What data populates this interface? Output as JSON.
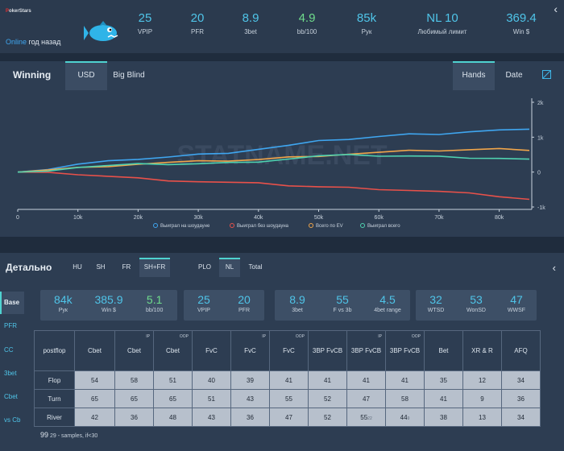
{
  "header": {
    "brand": "PokerStars",
    "online_label": "Online",
    "online_time": "год назад",
    "stats": [
      {
        "value": "25",
        "label": "VPIP",
        "color": "#4fc4e8"
      },
      {
        "value": "20",
        "label": "PFR",
        "color": "#4fc4e8"
      },
      {
        "value": "8.9",
        "label": "3bet",
        "color": "#4fc4e8"
      },
      {
        "value": "4.9",
        "label": "bb/100",
        "color": "#6fdc8c"
      },
      {
        "value": "85k",
        "label": "Рук",
        "color": "#4fc4e8"
      },
      {
        "value": "NL 10",
        "label": "Любимый лимит",
        "color": "#4fc4e8"
      },
      {
        "value": "369.4",
        "label": "Win $",
        "color": "#4fc4e8"
      }
    ],
    "chevron": "‹"
  },
  "chart_panel": {
    "title": "Winning",
    "tabs_unit": [
      "USD",
      "Big Blind"
    ],
    "active_unit": "USD",
    "tabs_axis": [
      "Hands",
      "Date"
    ],
    "active_axis": "Hands",
    "expand_icon": "expand-icon"
  },
  "chart_data": {
    "type": "line",
    "watermark": "STATNAME.NET",
    "x_ticks": [
      "0",
      "10k",
      "20k",
      "30k",
      "40k",
      "50k",
      "60k",
      "70k",
      "80k"
    ],
    "y_ticks": [
      "2k",
      "1k",
      "0",
      "-1k"
    ],
    "xlim": [
      0,
      85000
    ],
    "ylim": [
      -1500,
      2000
    ],
    "legend": [
      {
        "name": "Выиграл на шоудауне",
        "color": "#3fa6f0"
      },
      {
        "name": "Выиграл без шоудауна",
        "color": "#e8514a"
      },
      {
        "name": "Всего по EV",
        "color": "#f0a54a"
      },
      {
        "name": "Выиграл всего",
        "color": "#4fd2b0"
      }
    ],
    "series": [
      {
        "name": "Выиграл на шоудауне",
        "color": "#3fa6f0",
        "x": [
          0,
          5000,
          10000,
          15000,
          20000,
          25000,
          30000,
          35000,
          40000,
          45000,
          50000,
          55000,
          60000,
          65000,
          70000,
          75000,
          80000,
          85000
        ],
        "y": [
          0,
          80,
          220,
          300,
          380,
          430,
          500,
          560,
          660,
          760,
          880,
          950,
          1020,
          1080,
          1100,
          1160,
          1200,
          1230
        ]
      },
      {
        "name": "Выиграл без шоудауна",
        "color": "#e8514a",
        "x": [
          0,
          5000,
          10000,
          15000,
          20000,
          25000,
          30000,
          35000,
          40000,
          45000,
          50000,
          55000,
          60000,
          65000,
          70000,
          75000,
          80000,
          85000
        ],
        "y": [
          0,
          -30,
          -60,
          -120,
          -180,
          -230,
          -270,
          -300,
          -330,
          -380,
          -420,
          -450,
          -480,
          -520,
          -560,
          -620,
          -690,
          -780
        ]
      },
      {
        "name": "Всего по EV",
        "color": "#f0a54a",
        "x": [
          0,
          5000,
          10000,
          15000,
          20000,
          25000,
          30000,
          35000,
          40000,
          45000,
          50000,
          55000,
          60000,
          65000,
          70000,
          75000,
          80000,
          85000
        ],
        "y": [
          0,
          60,
          120,
          180,
          230,
          270,
          300,
          330,
          360,
          420,
          470,
          520,
          560,
          600,
          620,
          640,
          660,
          620
        ]
      },
      {
        "name": "Выиграл всего",
        "color": "#4fd2b0",
        "x": [
          0,
          5000,
          10000,
          15000,
          20000,
          25000,
          30000,
          35000,
          40000,
          45000,
          50000,
          55000,
          60000,
          65000,
          70000,
          75000,
          80000,
          85000
        ],
        "y": [
          0,
          50,
          140,
          180,
          220,
          230,
          240,
          260,
          310,
          380,
          460,
          480,
          470,
          460,
          440,
          420,
          400,
          370
        ]
      }
    ]
  },
  "detail": {
    "title": "Детально",
    "game_tabs": [
      "HU",
      "SH",
      "FR",
      "SH+FR"
    ],
    "active_game": "SH+FR",
    "type_tabs": [
      "PLO",
      "NL",
      "Total"
    ],
    "active_type": "NL",
    "chevron": "‹",
    "side_items": [
      "Base",
      "PFR",
      "CC",
      "3bet",
      "Cbet",
      "vs Cb"
    ],
    "active_side": "Base",
    "boxes": [
      [
        {
          "value": "84k",
          "label": "Рук"
        },
        {
          "value": "385.9",
          "label": "Win $"
        },
        {
          "value": "5.1",
          "label": "bb/100",
          "green": true
        }
      ],
      [
        {
          "value": "25",
          "label": "VPIP"
        },
        {
          "value": "20",
          "label": "PFR"
        }
      ],
      [
        {
          "value": "8.9",
          "label": "3bet"
        },
        {
          "value": "55",
          "label": "F vs 3b"
        },
        {
          "value": "4.5",
          "label": "4bet range"
        }
      ],
      [
        {
          "value": "32",
          "label": "WTSD"
        },
        {
          "value": "53",
          "label": "WonSD"
        },
        {
          "value": "47",
          "label": "WWSF"
        }
      ]
    ],
    "table": {
      "columns": [
        {
          "label": "postflop",
          "sup": ""
        },
        {
          "label": "Cbet",
          "sup": ""
        },
        {
          "label": "Cbet",
          "sup": "IP"
        },
        {
          "label": "Cbet",
          "sup": "OOP"
        },
        {
          "label": "FvC",
          "sup": ""
        },
        {
          "label": "FvC",
          "sup": "IP"
        },
        {
          "label": "FvC",
          "sup": "OOP"
        },
        {
          "label": "3BP FvCB",
          "sup": ""
        },
        {
          "label": "3BP FvCB",
          "sup": "IP"
        },
        {
          "label": "3BP FvCB",
          "sup": "OOP"
        },
        {
          "label": "Bet",
          "sup": ""
        },
        {
          "label": "XR & R",
          "sup": ""
        },
        {
          "label": "AFQ",
          "sup": ""
        }
      ],
      "rows": [
        {
          "label": "Flop",
          "cells": [
            {
              "v": "54"
            },
            {
              "v": "58"
            },
            {
              "v": "51"
            },
            {
              "v": "40"
            },
            {
              "v": "39"
            },
            {
              "v": "41"
            },
            {
              "v": "41"
            },
            {
              "v": "41"
            },
            {
              "v": "41"
            },
            {
              "v": "35"
            },
            {
              "v": "12"
            },
            {
              "v": "34"
            }
          ]
        },
        {
          "label": "Turn",
          "cells": [
            {
              "v": "65"
            },
            {
              "v": "65"
            },
            {
              "v": "65"
            },
            {
              "v": "51"
            },
            {
              "v": "43"
            },
            {
              "v": "55"
            },
            {
              "v": "52"
            },
            {
              "v": "47"
            },
            {
              "v": "58"
            },
            {
              "v": "41"
            },
            {
              "v": "9"
            },
            {
              "v": "36"
            }
          ]
        },
        {
          "label": "River",
          "cells": [
            {
              "v": "42"
            },
            {
              "v": "36"
            },
            {
              "v": "48"
            },
            {
              "v": "43"
            },
            {
              "v": "36"
            },
            {
              "v": "47"
            },
            {
              "v": "52"
            },
            {
              "v": "55",
              "sub": "22"
            },
            {
              "v": "44",
              "sub": "9"
            },
            {
              "v": "38"
            },
            {
              "v": "13"
            },
            {
              "v": "34"
            }
          ]
        }
      ]
    },
    "note_big": "99",
    "note_text": "29 - samples, if<30"
  }
}
